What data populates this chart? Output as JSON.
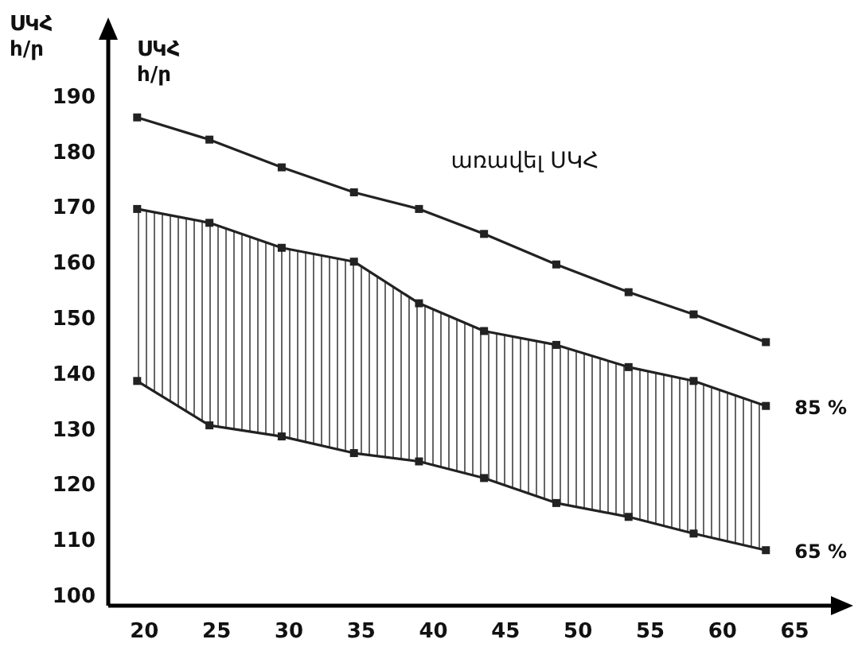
{
  "chart_data": {
    "type": "line",
    "ylabel": "ՍԿՀ\nհ/ր",
    "annotations": [
      "ՍԿՀ\nհ/ր"
    ],
    "x": [
      19.5,
      24.5,
      29.5,
      34.5,
      39,
      43.5,
      48.5,
      53.5,
      58,
      63
    ],
    "xlim": [
      17.5,
      67.5
    ],
    "xticks": [
      20,
      25,
      30,
      35,
      40,
      45,
      50,
      55,
      60,
      65
    ],
    "ylim": [
      98,
      200
    ],
    "yticks": [
      100,
      110,
      120,
      130,
      140,
      150,
      160,
      170,
      180,
      190
    ],
    "grid": false,
    "legend": false,
    "marker": "square",
    "line_style": "solid",
    "series": [
      {
        "name": "առավել ՍԿՀ",
        "color": "#222222",
        "values": [
          186,
          182,
          177,
          172.5,
          169.5,
          165,
          159.5,
          154.5,
          150.5,
          145.5
        ]
      },
      {
        "name": "85 %",
        "color": "#222222",
        "values": [
          169.5,
          167,
          162.5,
          160,
          152.5,
          147.5,
          145,
          141,
          138.5,
          134
        ]
      },
      {
        "name": "65 %",
        "color": "#222222",
        "values": [
          138.5,
          130.5,
          128.5,
          125.5,
          124,
          121,
          116.5,
          114,
          111,
          108
        ]
      }
    ]
  }
}
